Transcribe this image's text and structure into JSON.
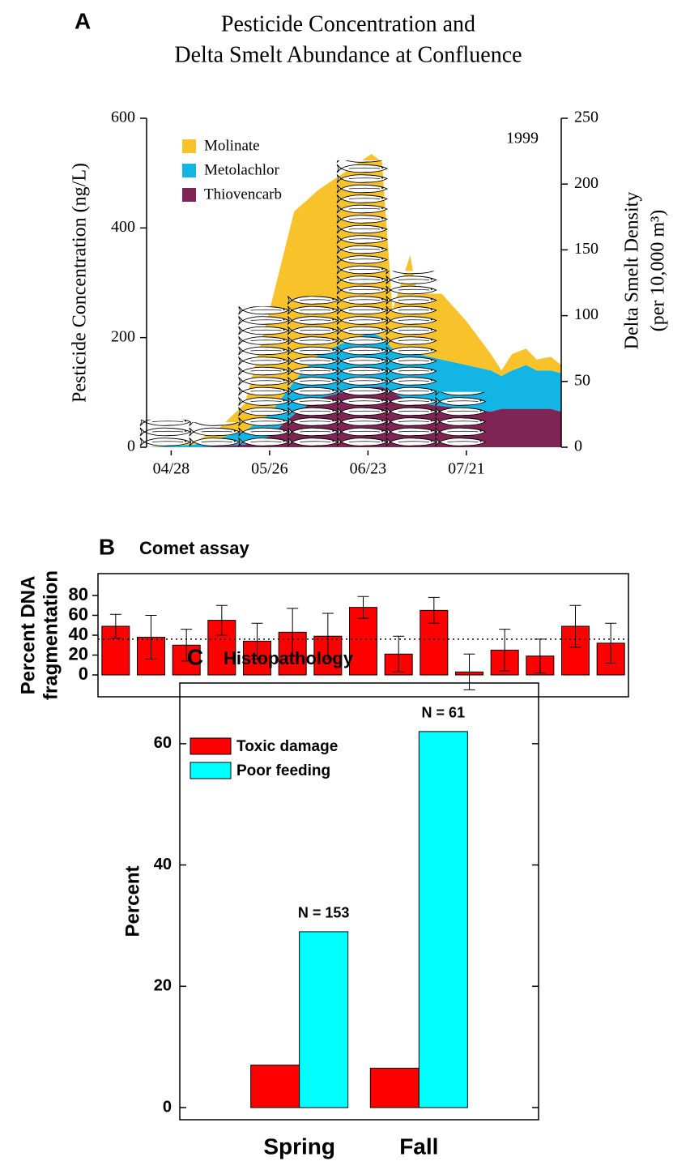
{
  "chart_data": [
    {
      "panel": "A",
      "type": "stacked_area",
      "title": [
        "Pesticide Concentration and",
        "Delta Smelt Abundance at Confluence"
      ],
      "ylabel": "Pesticide Concentration (ng/L)",
      "y2label": [
        "Delta Smelt Density",
        "(per 10,000 m³)"
      ],
      "annotation": "1999",
      "x": [
        "04/21",
        "04/28",
        "05/05",
        "05/12",
        "05/19",
        "05/26",
        "06/02",
        "06/09",
        "06/16",
        "06/24",
        "06/27",
        "06/30",
        "07/03",
        "07/05",
        "07/07",
        "07/14",
        "07/21",
        "07/28",
        "07/31",
        "08/03",
        "08/07",
        "08/10",
        "08/14",
        "08/17"
      ],
      "xlim": [
        "04/21",
        "08/17"
      ],
      "xticks": [
        "04/28",
        "05/26",
        "06/23",
        "07/21"
      ],
      "ylim": [
        0,
        600
      ],
      "yticks": [
        0,
        200,
        400,
        600
      ],
      "y2lim": [
        0,
        250
      ],
      "y2ticks": [
        0,
        50,
        100,
        150,
        200,
        250
      ],
      "legend": "upper-left",
      "series": [
        {
          "name": "Molinate",
          "color": "#f8c32a",
          "values": [
            0,
            3,
            5,
            20,
            50,
            190,
            310,
            300,
            310,
            325,
            320,
            70,
            130,
            170,
            110,
            120,
            80,
            30,
            10,
            30,
            30,
            20,
            25,
            15
          ]
        },
        {
          "name": "Metolachlor",
          "color": "#12b5e4",
          "values": [
            0,
            2,
            5,
            15,
            25,
            40,
            60,
            80,
            90,
            100,
            90,
            80,
            90,
            90,
            90,
            85,
            80,
            75,
            60,
            70,
            80,
            70,
            70,
            70
          ]
        },
        {
          "name": "Thiovencarb",
          "color": "#7f2454",
          "values": [
            0,
            0,
            0,
            2,
            5,
            20,
            60,
            90,
            100,
            110,
            110,
            100,
            90,
            90,
            80,
            75,
            70,
            65,
            70,
            70,
            70,
            70,
            70,
            65
          ]
        }
      ],
      "smelt": {
        "x": [
          "04/27",
          "05/11",
          "05/25",
          "06/08",
          "06/22",
          "07/06",
          "07/20"
        ],
        "values": [
          21,
          19,
          107,
          115,
          218,
          134,
          42
        ],
        "axis": "y2"
      }
    },
    {
      "panel": "B",
      "type": "bar",
      "title": "Comet assay",
      "ylabel": [
        "Percent DNA",
        "fragmentation"
      ],
      "categories": [
        null,
        null,
        null,
        null,
        null,
        null,
        null,
        null,
        null,
        null,
        null,
        null,
        null,
        null,
        null
      ],
      "values": [
        49,
        38,
        30,
        55,
        34,
        43,
        39,
        68,
        21,
        65,
        3,
        25,
        19,
        49,
        32
      ],
      "errors": [
        12,
        22,
        16,
        15,
        18,
        24,
        23,
        11,
        18,
        13,
        18,
        21,
        17,
        21,
        20
      ],
      "color": "#ff0000",
      "ylim": [
        -22,
        102
      ],
      "yticks": [
        0,
        20,
        40,
        60,
        80
      ],
      "hline": 36
    },
    {
      "panel": "C",
      "type": "grouped_bar",
      "title": "Histopathology",
      "ylabel": "Percent",
      "categories": [
        "Spring",
        "Fall"
      ],
      "series": [
        {
          "name": "Toxic damage",
          "color": "#ff0000",
          "values": [
            7,
            6.5
          ]
        },
        {
          "name": "Poor feeding",
          "color": "#00ffff",
          "values": [
            29,
            62
          ],
          "annotations": [
            "N = 153",
            "N = 61"
          ]
        }
      ],
      "ylim": [
        -2,
        70
      ],
      "yticks": [
        0,
        20,
        40,
        60
      ],
      "legend": "upper-left"
    }
  ]
}
